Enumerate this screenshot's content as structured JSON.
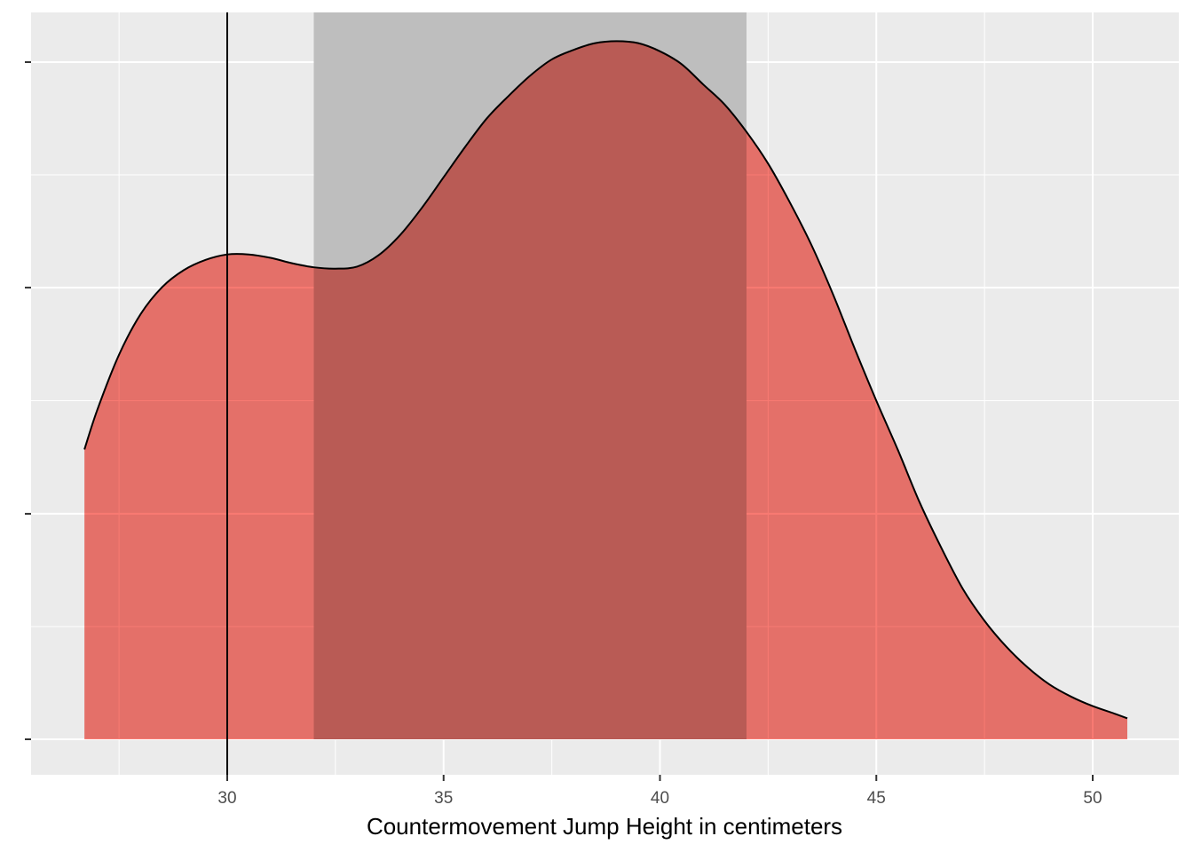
{
  "chart_data": {
    "type": "area",
    "title": "",
    "xlabel": "Countermovement Jump Height in centimeters",
    "ylabel": "",
    "xlim": [
      25.5,
      51.6
    ],
    "ylim": [
      0,
      1.08
    ],
    "x_ticks": [
      30,
      35,
      40,
      45,
      50
    ],
    "x_tick_labels": [
      "30",
      "35",
      "40",
      "45",
      "50"
    ],
    "y_ticks": [
      0,
      0.333,
      0.667,
      1.0
    ],
    "y_tick_labels": [
      "",
      "",
      "",
      ""
    ],
    "grid": true,
    "legend": "none",
    "colors": {
      "panel_background": "#EBEBEB",
      "grid": "#FFFFFF",
      "density_fill": "#F8766D",
      "shaded_band": "#BEBEBE",
      "line": "#000000",
      "tick_text": "#4D4D4D"
    },
    "shaded_band": {
      "x_start": 32,
      "x_end": 42
    },
    "vertical_line": {
      "x": 30
    },
    "series": [
      {
        "x": [
          26.7,
          27.0,
          27.5,
          28.0,
          28.5,
          29.0,
          29.5,
          30.0,
          30.5,
          31.0,
          31.5,
          32.0,
          32.5,
          33.0,
          33.5,
          34.0,
          34.5,
          35.0,
          35.5,
          36.0,
          36.5,
          37.0,
          37.5,
          38.0,
          38.5,
          39.0,
          39.5,
          40.0,
          40.5,
          41.0,
          41.5,
          42.0,
          42.5,
          43.0,
          43.5,
          44.0,
          44.5,
          45.0,
          45.5,
          46.0,
          46.5,
          47.0,
          47.5,
          48.0,
          48.5,
          49.0,
          49.5,
          50.0,
          50.5,
          50.8
        ],
        "y": [
          0.428,
          0.487,
          0.568,
          0.628,
          0.668,
          0.693,
          0.708,
          0.716,
          0.716,
          0.711,
          0.703,
          0.697,
          0.695,
          0.698,
          0.715,
          0.745,
          0.785,
          0.83,
          0.875,
          0.917,
          0.95,
          0.98,
          1.004,
          1.018,
          1.028,
          1.031,
          1.028,
          1.016,
          0.997,
          0.967,
          0.937,
          0.897,
          0.85,
          0.793,
          0.73,
          0.657,
          0.577,
          0.5,
          0.427,
          0.35,
          0.283,
          0.222,
          0.175,
          0.137,
          0.106,
          0.081,
          0.063,
          0.049,
          0.038,
          0.031
        ]
      }
    ]
  }
}
